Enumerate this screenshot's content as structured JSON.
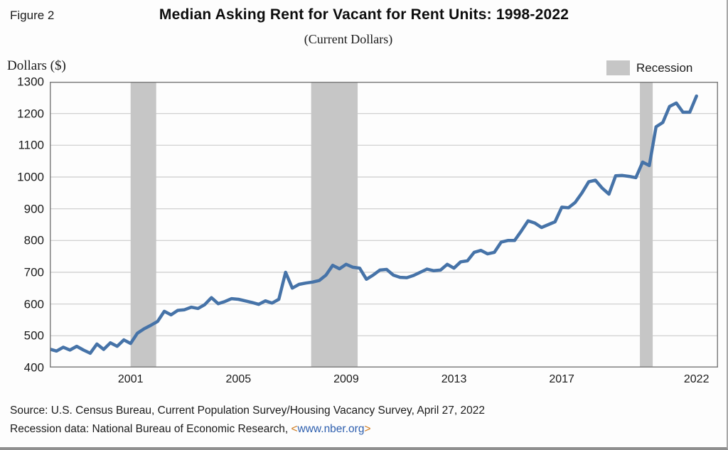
{
  "page": {
    "figure_label": "Figure 2",
    "title": "Median Asking Rent for Vacant for Rent Units: 1998-2022",
    "subtitle": "(Current Dollars)",
    "y_axis_title": "Dollars ($)",
    "source_line1": "Source: U.S. Census Bureau, Current Population Survey/Housing Vacancy Survey, April 27, 2022",
    "source_line2_prefix": "Recession data: National Bureau of Economic Research, ",
    "source_line2_bracket_open": "<",
    "source_link": "www.nber.org",
    "source_line2_bracket_close": ">"
  },
  "legend": {
    "recession_label": "Recession"
  },
  "colors": {
    "line": "#4673a8",
    "recession_band": "#c6c6c6",
    "grid": "#cbcbcb",
    "plot_border": "#7f7f7f",
    "link_blue": "#2e5fae",
    "bracket_orange": "#cf7a1d"
  },
  "chart_data": {
    "type": "line",
    "title": "Median Asking Rent for Vacant for Rent Units: 1998-2022",
    "subtitle": "(Current Dollars)",
    "ylabel": "Dollars ($)",
    "xlabel": "",
    "grid": true,
    "legend_position": "top-right",
    "legend_entries": [
      "Recession"
    ],
    "x_unit": "quarterly",
    "x_start": "1998Q1",
    "x_end": "2022Q1",
    "x_domain_quarters": [
      0,
      99.2
    ],
    "ylim": [
      400,
      1300
    ],
    "y_ticks": [
      400,
      500,
      600,
      700,
      800,
      900,
      1000,
      1100,
      1200,
      1300
    ],
    "x_ticks": [
      {
        "label": "2001",
        "quarter": 12
      },
      {
        "label": "2005",
        "quarter": 28
      },
      {
        "label": "2009",
        "quarter": 44
      },
      {
        "label": "2013",
        "quarter": 60
      },
      {
        "label": "2017",
        "quarter": 76
      },
      {
        "label": "2022",
        "quarter": 96
      }
    ],
    "recession_bands_quarters": [
      [
        12,
        15.8
      ],
      [
        38.8,
        45.7
      ],
      [
        87.6,
        89.5
      ]
    ],
    "series": [
      {
        "name": "Median asking rent (current dollars)",
        "values": [
          458,
          452,
          464,
          455,
          467,
          455,
          445,
          474,
          457,
          478,
          467,
          487,
          476,
          508,
          522,
          533,
          545,
          577,
          566,
          580,
          582,
          590,
          586,
          598,
          620,
          601,
          608,
          617,
          615,
          610,
          605,
          599,
          610,
          603,
          615,
          700,
          650,
          662,
          666,
          669,
          674,
          691,
          722,
          711,
          725,
          716,
          713,
          678,
          691,
          707,
          709,
          691,
          684,
          683,
          690,
          700,
          710,
          705,
          707,
          725,
          713,
          733,
          736,
          763,
          769,
          758,
          763,
          795,
          800,
          800,
          830,
          862,
          855,
          841,
          850,
          859,
          905,
          903,
          920,
          950,
          985,
          990,
          965,
          946,
          1004,
          1005,
          1002,
          998,
          1047,
          1036,
          1158,
          1172,
          1222,
          1233,
          1204,
          1204,
          1255
        ]
      }
    ]
  }
}
